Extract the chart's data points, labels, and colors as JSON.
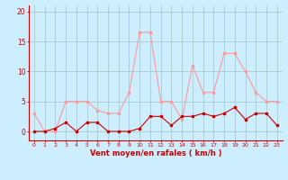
{
  "x": [
    0,
    1,
    2,
    3,
    4,
    5,
    6,
    7,
    8,
    9,
    10,
    11,
    12,
    13,
    14,
    15,
    16,
    17,
    18,
    19,
    20,
    21,
    22,
    23
  ],
  "wind_avg": [
    0,
    0,
    0.5,
    1.5,
    0,
    1.5,
    1.5,
    0,
    0,
    0,
    0.5,
    2.5,
    2.5,
    1,
    2.5,
    2.5,
    3,
    2.5,
    3,
    4,
    2,
    3,
    3,
    1
  ],
  "wind_gust": [
    3,
    0,
    0,
    5,
    5,
    5,
    3.5,
    3,
    3,
    6.5,
    16.5,
    16.5,
    5,
    5,
    2,
    11,
    6.5,
    6.5,
    13,
    13,
    10,
    6.5,
    5,
    5
  ],
  "bg_color": "#cceeff",
  "grid_color": "#aacccc",
  "avg_color": "#cc0000",
  "gust_color": "#ff9999",
  "xlabel": "Vent moyen/en rafales ( km/h )",
  "ylabel_ticks": [
    0,
    5,
    10,
    15,
    20
  ],
  "xlim": [
    -0.5,
    23.5
  ],
  "ylim": [
    -1.5,
    21
  ],
  "xticks": [
    0,
    1,
    2,
    3,
    4,
    5,
    6,
    7,
    8,
    9,
    10,
    11,
    12,
    13,
    14,
    15,
    16,
    17,
    18,
    19,
    20,
    21,
    22,
    23
  ]
}
